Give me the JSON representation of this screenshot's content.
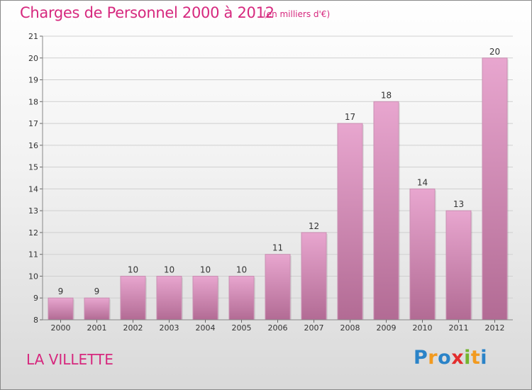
{
  "header": {
    "title": "Charges de Personnel 2000 à 2012",
    "subtitle": "(en milliers d'€)"
  },
  "footer": {
    "town": "LA VILLETTE",
    "logo_text": "Proxiti",
    "logo_letters": [
      {
        "ch": "P",
        "color": "#2a83c8"
      },
      {
        "ch": "r",
        "color": "#f29a1f"
      },
      {
        "ch": "o",
        "color": "#2a83c8"
      },
      {
        "ch": "x",
        "color": "#e32d2d"
      },
      {
        "ch": "i",
        "color": "#73b52e"
      },
      {
        "ch": "t",
        "color": "#f29a1f"
      },
      {
        "ch": "i",
        "color": "#2a83c8"
      }
    ]
  },
  "colors": {
    "accent": "#d6287e",
    "bar_top": "#e8a6cf",
    "bar_bottom": "#b26b94"
  },
  "chart_data": {
    "type": "bar",
    "title": "Charges de Personnel 2000 à 2012",
    "subtitle": "(en milliers d'€)",
    "categories": [
      "2000",
      "2001",
      "2002",
      "2003",
      "2004",
      "2005",
      "2006",
      "2007",
      "2008",
      "2009",
      "2010",
      "2011",
      "2012"
    ],
    "values": [
      9,
      9,
      10,
      10,
      10,
      10,
      11,
      12,
      17,
      18,
      14,
      13,
      20
    ],
    "ylim": [
      8,
      21
    ],
    "yticks": [
      8,
      9,
      10,
      11,
      12,
      13,
      14,
      15,
      16,
      17,
      18,
      19,
      20,
      21
    ],
    "grid": true,
    "legend": "none"
  }
}
